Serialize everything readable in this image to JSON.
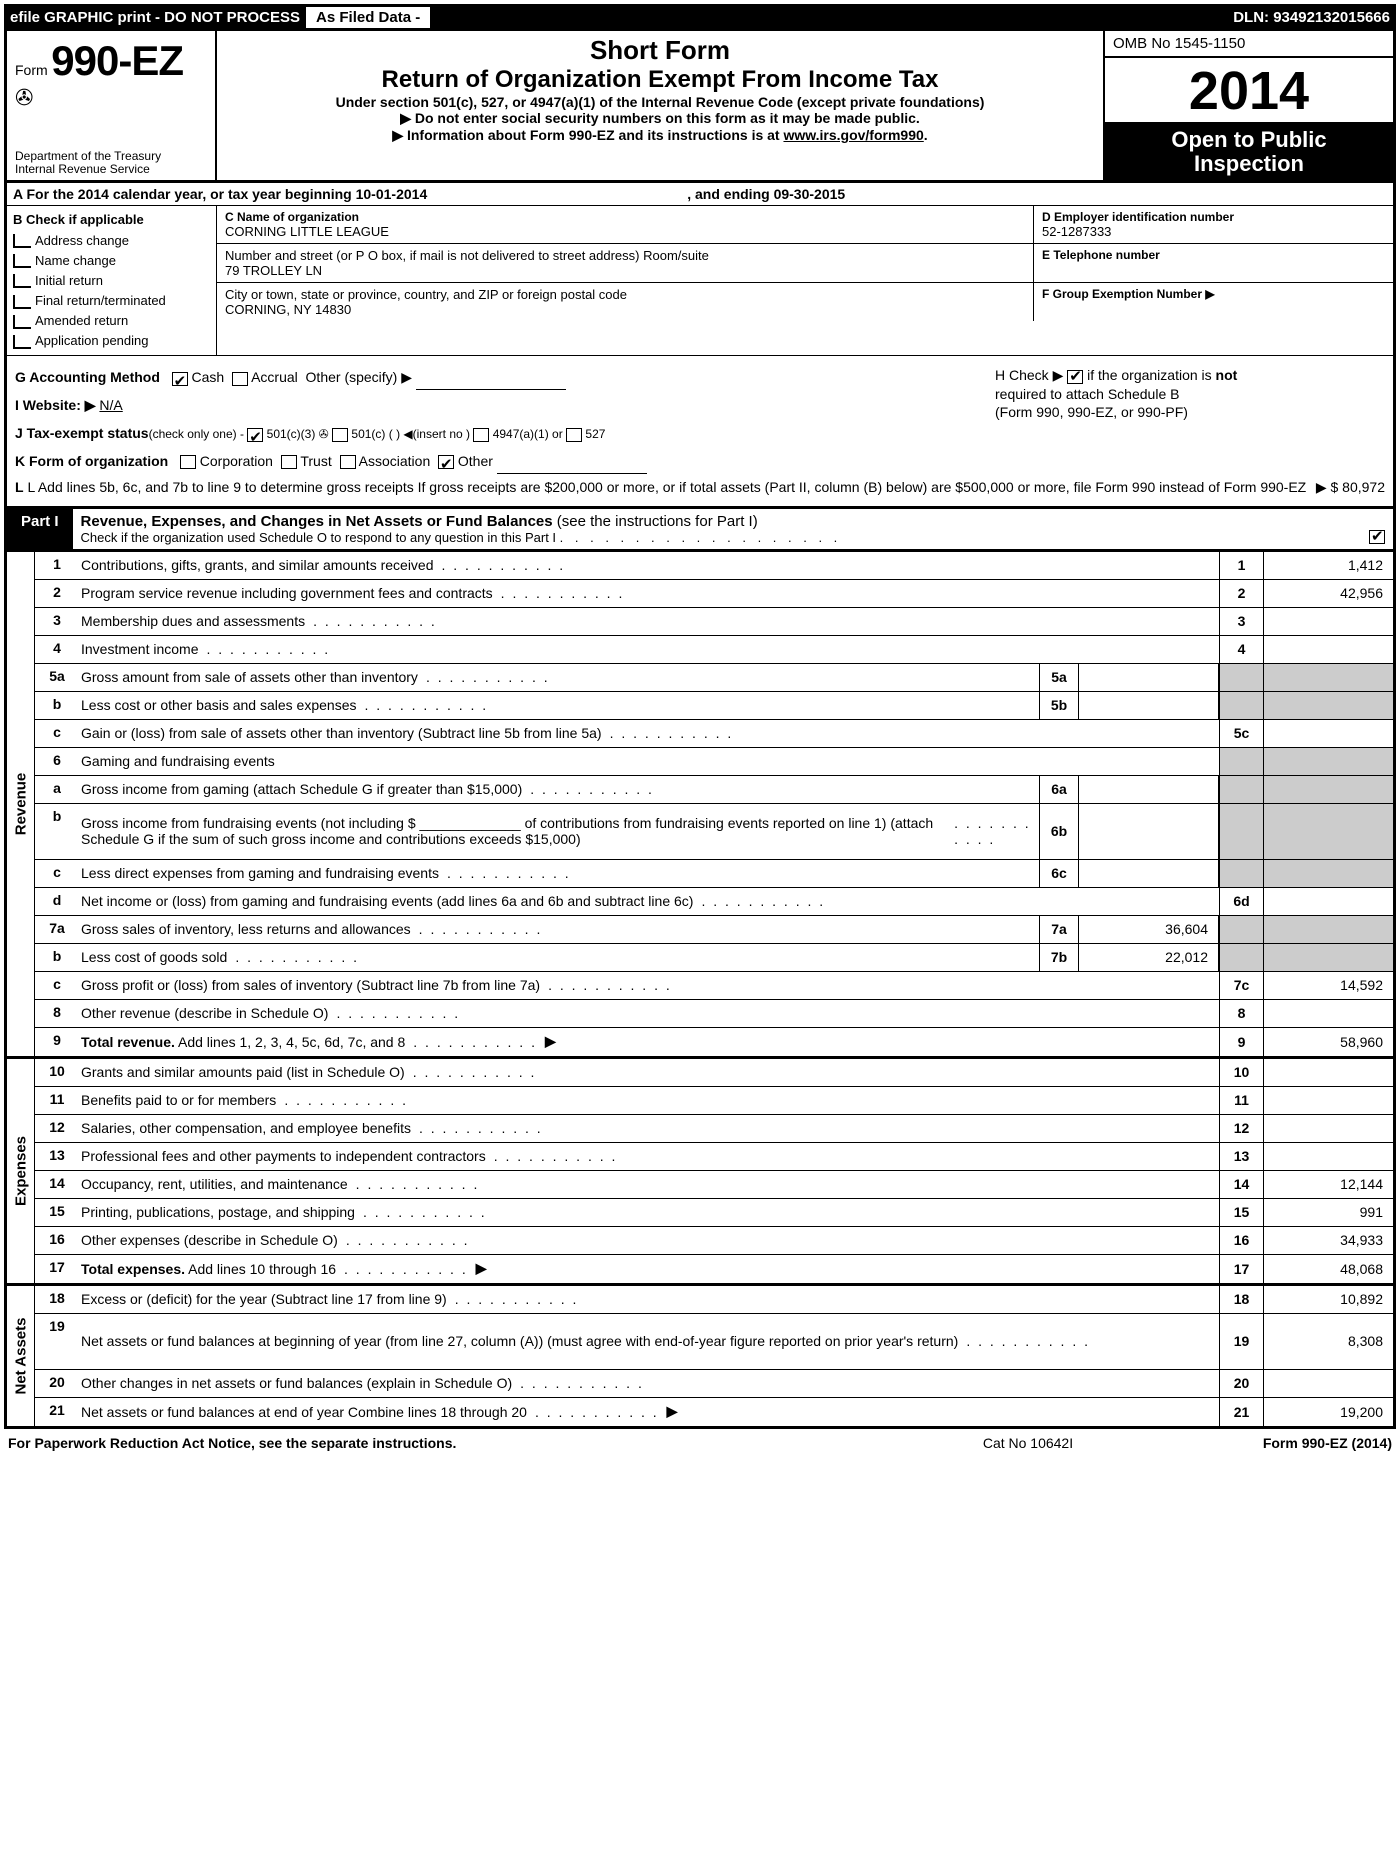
{
  "topbar": {
    "efile": "efile GRAPHIC print - DO NOT PROCESS",
    "asfiled": "As Filed Data -",
    "dln": "DLN: 93492132015666"
  },
  "header": {
    "form_word": "Form",
    "form_number": "990-EZ",
    "dept1": "Department of the Treasury",
    "dept2": "Internal Revenue Service",
    "short_form": "Short Form",
    "return_title": "Return of Organization Exempt From Income Tax",
    "subtitle": "Under section 501(c), 527, or 4947(a)(1) of the Internal Revenue Code (except private foundations)",
    "note1": "▶ Do not enter social security numbers on this form as it may be made public.",
    "note2_pre": "▶ Information about Form 990-EZ and its instructions is at ",
    "note2_link": "www.irs.gov/form990",
    "note2_post": ".",
    "omb": "OMB No  1545-1150",
    "year": "2014",
    "inspection1": "Open to Public",
    "inspection2": "Inspection"
  },
  "row_a": {
    "text": "A  For the 2014 calendar year, or tax year beginning 10-01-2014",
    "ending": ", and ending 09-30-2015"
  },
  "section_b": {
    "title": "B  Check if applicable",
    "items": [
      "Address change",
      "Name change",
      "Initial return",
      "Final return/terminated",
      "Amended return",
      "Application pending"
    ]
  },
  "section_c": {
    "name_label": "C Name of organization",
    "name": "CORNING LITTLE LEAGUE",
    "street_label": "Number and street (or P  O  box, if mail is not delivered to street address) Room/suite",
    "street": "79 TROLLEY LN",
    "city_label": "City or town, state or province, country, and ZIP or foreign postal code",
    "city": "CORNING, NY  14830"
  },
  "section_d": {
    "ein_label": "D Employer identification number",
    "ein": "52-1287333",
    "tel_label": "E Telephone number",
    "tel": "",
    "group_label": "F Group Exemption Number  ▶",
    "group": ""
  },
  "gl": {
    "g_label": "G Accounting Method",
    "g_cash": "Cash",
    "g_accrual": "Accrual",
    "g_other": "Other (specify) ▶",
    "h_text1": "H  Check ▶",
    "h_text2": "if the organization is ",
    "h_not": "not",
    "h_text3": "required to attach Schedule B",
    "h_text4": "(Form 990, 990-EZ, or 990-PF)",
    "i_label": "I Website: ▶",
    "i_val": "N/A",
    "j_label": "J Tax-exempt status",
    "j_sub": "(check only one) -",
    "j_501c3": "501(c)(3)",
    "j_501c": "501(c) (    ) ◀(insert no )",
    "j_4947": "4947(a)(1) or",
    "j_527": "527",
    "k_label": "K Form of organization",
    "k_corp": "Corporation",
    "k_trust": "Trust",
    "k_assoc": "Association",
    "k_other": "Other",
    "l_text": "L Add lines 5b, 6c, and 7b to line 9 to determine gross receipts  If gross receipts are $200,000 or more, or if total assets (Part II, column (B) below) are $500,000 or more, file Form 990 instead of Form 990-EZ",
    "l_arrow": "▶",
    "l_val": "$ 80,972"
  },
  "part1": {
    "label": "Part I",
    "title": "Revenue, Expenses, and Changes in Net Assets or Fund Balances",
    "title_sub": "(see the instructions for Part I)",
    "sub": "Check if the organization used Schedule O to respond to any question in this Part I"
  },
  "sections": [
    {
      "side": "Revenue",
      "rows": [
        {
          "num": "1",
          "desc": "Contributions, gifts, grants, and similar amounts received",
          "rnum": "1",
          "val": "1,412"
        },
        {
          "num": "2",
          "desc": "Program service revenue including government fees and contracts",
          "rnum": "2",
          "val": "42,956"
        },
        {
          "num": "3",
          "desc": "Membership dues and assessments",
          "rnum": "3",
          "val": ""
        },
        {
          "num": "4",
          "desc": "Investment income",
          "rnum": "4",
          "val": ""
        },
        {
          "num": "5a",
          "desc": "Gross amount from sale of assets other than inventory",
          "sub_num": "5a",
          "sub_val": "",
          "rnum": "",
          "val": "",
          "shaded": true
        },
        {
          "num": "b",
          "desc": "Less  cost or other basis and sales expenses",
          "sub_num": "5b",
          "sub_val": "",
          "rnum": "",
          "val": "",
          "shaded": true
        },
        {
          "num": "c",
          "desc": "Gain or (loss) from sale of assets other than inventory (Subtract line 5b from line 5a)",
          "rnum": "5c",
          "val": ""
        },
        {
          "num": "6",
          "desc": "Gaming and fundraising events",
          "rnum": "",
          "val": "",
          "no_cells": true,
          "shaded": true
        },
        {
          "num": "a",
          "desc": "Gross income from gaming (attach Schedule G if greater than $15,000)",
          "sub_num": "6a",
          "sub_val": "",
          "rnum": "",
          "val": "",
          "shaded": true
        },
        {
          "num": "b",
          "desc": "Gross income from fundraising events (not including $ _____________ of contributions from fundraising events reported on line 1) (attach Schedule G if the sum of such gross income and contributions exceeds $15,000)",
          "sub_num": "6b",
          "sub_val": "",
          "rnum": "",
          "val": "",
          "shaded": true,
          "tall": true
        },
        {
          "num": "c",
          "desc": "Less  direct expenses from gaming and fundraising events",
          "sub_num": "6c",
          "sub_val": "",
          "rnum": "",
          "val": "",
          "shaded": true
        },
        {
          "num": "d",
          "desc": "Net income or (loss) from gaming and fundraising events (add lines 6a and 6b and subtract line 6c)",
          "rnum": "6d",
          "val": ""
        },
        {
          "num": "7a",
          "desc": "Gross sales of inventory, less returns and allowances",
          "sub_num": "7a",
          "sub_val": "36,604",
          "rnum": "",
          "val": "",
          "shaded": true
        },
        {
          "num": "b",
          "desc": "Less  cost of goods sold",
          "sub_num": "7b",
          "sub_val": "22,012",
          "rnum": "",
          "val": "",
          "shaded": true
        },
        {
          "num": "c",
          "desc": "Gross profit or (loss) from sales of inventory (Subtract line 7b from line 7a)",
          "rnum": "7c",
          "val": "14,592"
        },
        {
          "num": "8",
          "desc": "Other revenue (describe in Schedule O)",
          "rnum": "8",
          "val": ""
        },
        {
          "num": "9",
          "desc": "Total revenue. Add lines 1, 2, 3, 4, 5c, 6d, 7c, and 8",
          "rnum": "9",
          "val": "58,960",
          "bold": true,
          "arrow": true
        }
      ]
    },
    {
      "side": "Expenses",
      "rows": [
        {
          "num": "10",
          "desc": "Grants and similar amounts paid (list in Schedule O)",
          "rnum": "10",
          "val": ""
        },
        {
          "num": "11",
          "desc": "Benefits paid to or for members",
          "rnum": "11",
          "val": ""
        },
        {
          "num": "12",
          "desc": "Salaries, other compensation, and employee benefits",
          "rnum": "12",
          "val": ""
        },
        {
          "num": "13",
          "desc": "Professional fees and other payments to independent contractors",
          "rnum": "13",
          "val": ""
        },
        {
          "num": "14",
          "desc": "Occupancy, rent, utilities, and maintenance",
          "rnum": "14",
          "val": "12,144"
        },
        {
          "num": "15",
          "desc": "Printing, publications, postage, and shipping",
          "rnum": "15",
          "val": "991"
        },
        {
          "num": "16",
          "desc": "Other expenses (describe in Schedule O)",
          "rnum": "16",
          "val": "34,933"
        },
        {
          "num": "17",
          "desc": "Total expenses. Add lines 10 through 16",
          "rnum": "17",
          "val": "48,068",
          "bold": true,
          "arrow": true
        }
      ]
    },
    {
      "side": "Net Assets",
      "rows": [
        {
          "num": "18",
          "desc": "Excess or (deficit) for the year (Subtract line 17 from line 9)",
          "rnum": "18",
          "val": "10,892"
        },
        {
          "num": "19",
          "desc": "Net assets or fund balances at beginning of year (from line 27, column (A)) (must agree with end-of-year figure reported on prior year's return)",
          "rnum": "19",
          "val": "8,308",
          "tall": true
        },
        {
          "num": "20",
          "desc": "Other changes in net assets or fund balances (explain in Schedule O)",
          "rnum": "20",
          "val": ""
        },
        {
          "num": "21",
          "desc": "Net assets or fund balances at end of year  Combine lines 18 through 20",
          "rnum": "21",
          "val": "19,200",
          "arrow": true
        }
      ]
    }
  ],
  "footer": {
    "left": "For Paperwork Reduction Act Notice, see the separate instructions.",
    "mid": "Cat  No  10642I",
    "right": "Form 990-EZ (2014)"
  }
}
